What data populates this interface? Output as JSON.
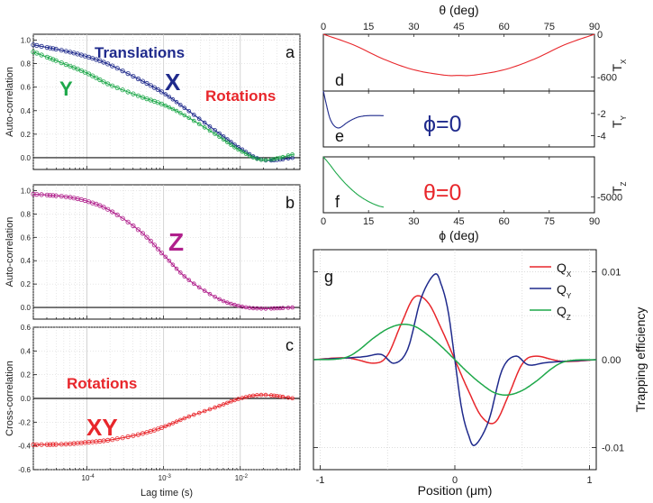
{
  "colors": {
    "blue": "#1f2a8c",
    "green": "#1ea84a",
    "magenta": "#b0208c",
    "red": "#e8262b",
    "black": "#111111",
    "grid": "#cfcfcf"
  },
  "chart_data": [
    {
      "id": "a",
      "type": "scatter",
      "panel_letter": "a",
      "ylabel": "Auto-correlation",
      "xscale": "log",
      "xlim": [
        2e-05,
        0.06
      ],
      "ylim": [
        -0.1,
        1.05
      ],
      "yticks": [
        "0.0",
        "0.2",
        "0.4",
        "0.6",
        "0.8",
        "1.0"
      ],
      "annotations": {
        "translations": "Translations",
        "x": "X",
        "y": "Y",
        "rotations": "Rotations"
      },
      "series": [
        {
          "key": "X",
          "color": "blue",
          "x": [
            2e-05,
            5e-05,
            0.0001,
            0.0002,
            0.0005,
            0.001,
            0.002,
            0.005,
            0.01,
            0.02,
            0.05
          ],
          "values": [
            0.96,
            0.91,
            0.86,
            0.79,
            0.66,
            0.55,
            0.41,
            0.22,
            0.08,
            -0.02,
            0.0
          ]
        },
        {
          "key": "Y",
          "color": "green",
          "x": [
            2e-05,
            5e-05,
            0.0001,
            0.0002,
            0.0005,
            0.001,
            0.002,
            0.005,
            0.01,
            0.02,
            0.05
          ],
          "values": [
            0.9,
            0.8,
            0.72,
            0.62,
            0.52,
            0.45,
            0.35,
            0.19,
            0.06,
            -0.02,
            0.03
          ]
        }
      ]
    },
    {
      "id": "b",
      "type": "scatter",
      "panel_letter": "b",
      "ylabel": "Auto-correlation",
      "xscale": "log",
      "xlim": [
        2e-05,
        0.06
      ],
      "ylim": [
        -0.1,
        1.05
      ],
      "yticks": [
        "0.0",
        "0.2",
        "0.4",
        "0.6",
        "0.8",
        "1.0"
      ],
      "annotations": {
        "z": "Z"
      },
      "series": [
        {
          "key": "Z",
          "color": "magenta",
          "x": [
            2e-05,
            5e-05,
            0.0001,
            0.0002,
            0.0005,
            0.001,
            0.002,
            0.005,
            0.01,
            0.02,
            0.05
          ],
          "values": [
            0.97,
            0.95,
            0.91,
            0.83,
            0.65,
            0.45,
            0.25,
            0.08,
            0.01,
            -0.01,
            0.0
          ]
        }
      ]
    },
    {
      "id": "c",
      "type": "scatter",
      "panel_letter": "c",
      "ylabel": "Cross-correlation",
      "xlabel": "Lag time (s)",
      "xscale": "log",
      "xlim": [
        2e-05,
        0.06
      ],
      "ylim": [
        -0.6,
        0.6
      ],
      "yticks": [
        "-0.6",
        "-0.4",
        "-0.2",
        "0.0",
        "0.2",
        "0.4",
        "0.6"
      ],
      "xticks": [
        {
          "v": 0.0001,
          "base": "10",
          "exp": "-4"
        },
        {
          "v": 0.001,
          "base": "10",
          "exp": "-3"
        },
        {
          "v": 0.01,
          "base": "10",
          "exp": "-2"
        }
      ],
      "annotations": {
        "rotations": "Rotations",
        "xy": "XY"
      },
      "series": [
        {
          "key": "XY",
          "color": "red",
          "x": [
            2e-05,
            5e-05,
            0.0001,
            0.0002,
            0.0005,
            0.001,
            0.002,
            0.005,
            0.01,
            0.02,
            0.05
          ],
          "values": [
            -0.39,
            -0.385,
            -0.37,
            -0.35,
            -0.3,
            -0.24,
            -0.16,
            -0.07,
            0.0,
            0.03,
            0.0
          ]
        }
      ]
    },
    {
      "id": "d",
      "type": "line",
      "panel_letter": "d",
      "x_top_label": "θ (deg)",
      "ylabel": "T",
      "ylabel_sub": "X",
      "xlim": [
        0,
        90
      ],
      "ylim": [
        -800,
        0
      ],
      "xticks": [
        "0",
        "15",
        "30",
        "45",
        "60",
        "75",
        "90"
      ],
      "yticks": [
        "0",
        "-600"
      ],
      "series": [
        {
          "key": "Tx",
          "color": "red",
          "x": [
            0,
            10,
            20,
            30,
            40,
            45,
            50,
            60,
            70,
            80,
            90
          ],
          "values": [
            0,
            -150,
            -350,
            -500,
            -575,
            -580,
            -575,
            -500,
            -350,
            -150,
            0
          ]
        }
      ]
    },
    {
      "id": "e",
      "type": "line",
      "panel_letter": "e",
      "ylabel": "T",
      "ylabel_sub": "Y",
      "xlim": [
        0,
        90
      ],
      "ylim": [
        -5,
        0
      ],
      "yticks": [
        "-2",
        "-4"
      ],
      "annotations": {
        "phi": "ϕ=0"
      },
      "series": [
        {
          "key": "Ty",
          "color": "blue",
          "x": [
            0,
            1,
            2,
            3,
            4,
            5,
            6,
            8,
            10,
            12,
            15,
            20
          ],
          "values": [
            0,
            -1.2,
            -2.3,
            -2.9,
            -3.2,
            -3.3,
            -3.2,
            -2.8,
            -2.5,
            -2.3,
            -2.2,
            -2.2
          ]
        }
      ]
    },
    {
      "id": "f",
      "type": "line",
      "panel_letter": "f",
      "ylabel": "T",
      "ylabel_sub": "Z",
      "x_bottom_label": "ϕ (deg)",
      "xlim": [
        0,
        90
      ],
      "ylim": [
        -7000,
        0
      ],
      "xticks": [
        "0",
        "15",
        "30",
        "45",
        "60",
        "75",
        "90"
      ],
      "yticks": [
        "-5000"
      ],
      "annotations": {
        "theta": "θ=0"
      },
      "series": [
        {
          "key": "Tz",
          "color": "green",
          "x": [
            0,
            2,
            4,
            6,
            8,
            10,
            12,
            15,
            18,
            20
          ],
          "values": [
            0,
            -900,
            -1900,
            -2800,
            -3600,
            -4300,
            -4900,
            -5600,
            -6100,
            -6300
          ]
        }
      ]
    },
    {
      "id": "g",
      "type": "line",
      "panel_letter": "g",
      "xlabel": "Position (μm)",
      "ylabel": "Trapping efficiency",
      "xlim": [
        -1.05,
        1.05
      ],
      "ylim": [
        -0.0125,
        0.0125
      ],
      "xticks": [
        "-1",
        "0",
        "1"
      ],
      "yticks": [
        "0.01",
        "0.00",
        "-0.01"
      ],
      "legend": {
        "placement": "top-right",
        "entries": [
          {
            "key": "Qx",
            "label": "Q",
            "sub": "X",
            "color": "red"
          },
          {
            "key": "Qy",
            "label": "Q",
            "sub": "Y",
            "color": "blue"
          },
          {
            "key": "Qz",
            "label": "Q",
            "sub": "Z",
            "color": "green"
          }
        ]
      },
      "series": [
        {
          "key": "Qx",
          "color": "red",
          "x": [
            -1.05,
            -0.8,
            -0.6,
            -0.5,
            -0.4,
            -0.3,
            -0.2,
            -0.1,
            0,
            0.1,
            0.2,
            0.3,
            0.4,
            0.5,
            0.6,
            0.8,
            1.05
          ],
          "values": [
            0,
            0.0002,
            -0.0004,
            0.0005,
            0.004,
            0.0071,
            0.0065,
            0.0035,
            0,
            -0.0035,
            -0.0065,
            -0.0071,
            -0.004,
            -0.0005,
            0.0004,
            -0.0002,
            0
          ]
        },
        {
          "key": "Qy",
          "color": "blue",
          "x": [
            -1.05,
            -0.7,
            -0.55,
            -0.45,
            -0.35,
            -0.25,
            -0.15,
            -0.1,
            -0.05,
            0,
            0.05,
            0.1,
            0.15,
            0.25,
            0.35,
            0.45,
            0.55,
            0.7,
            1.05
          ],
          "values": [
            0,
            0.0003,
            0.0006,
            -0.0004,
            0.0012,
            0.007,
            0.0097,
            0.0085,
            0.0055,
            0,
            -0.0055,
            -0.0085,
            -0.0097,
            -0.007,
            -0.0012,
            0.0004,
            -0.0006,
            -0.0003,
            0
          ]
        },
        {
          "key": "Qz",
          "color": "green",
          "x": [
            -1.05,
            -0.8,
            -0.6,
            -0.5,
            -0.4,
            -0.3,
            -0.2,
            -0.1,
            0,
            0.1,
            0.2,
            0.3,
            0.4,
            0.5,
            0.6,
            0.8,
            1.05
          ],
          "values": [
            0,
            0.0003,
            0.0025,
            0.0035,
            0.004,
            0.0038,
            0.0028,
            0.0015,
            0,
            -0.0015,
            -0.0028,
            -0.0038,
            -0.004,
            -0.0035,
            -0.0025,
            -0.0003,
            0
          ]
        }
      ]
    }
  ]
}
